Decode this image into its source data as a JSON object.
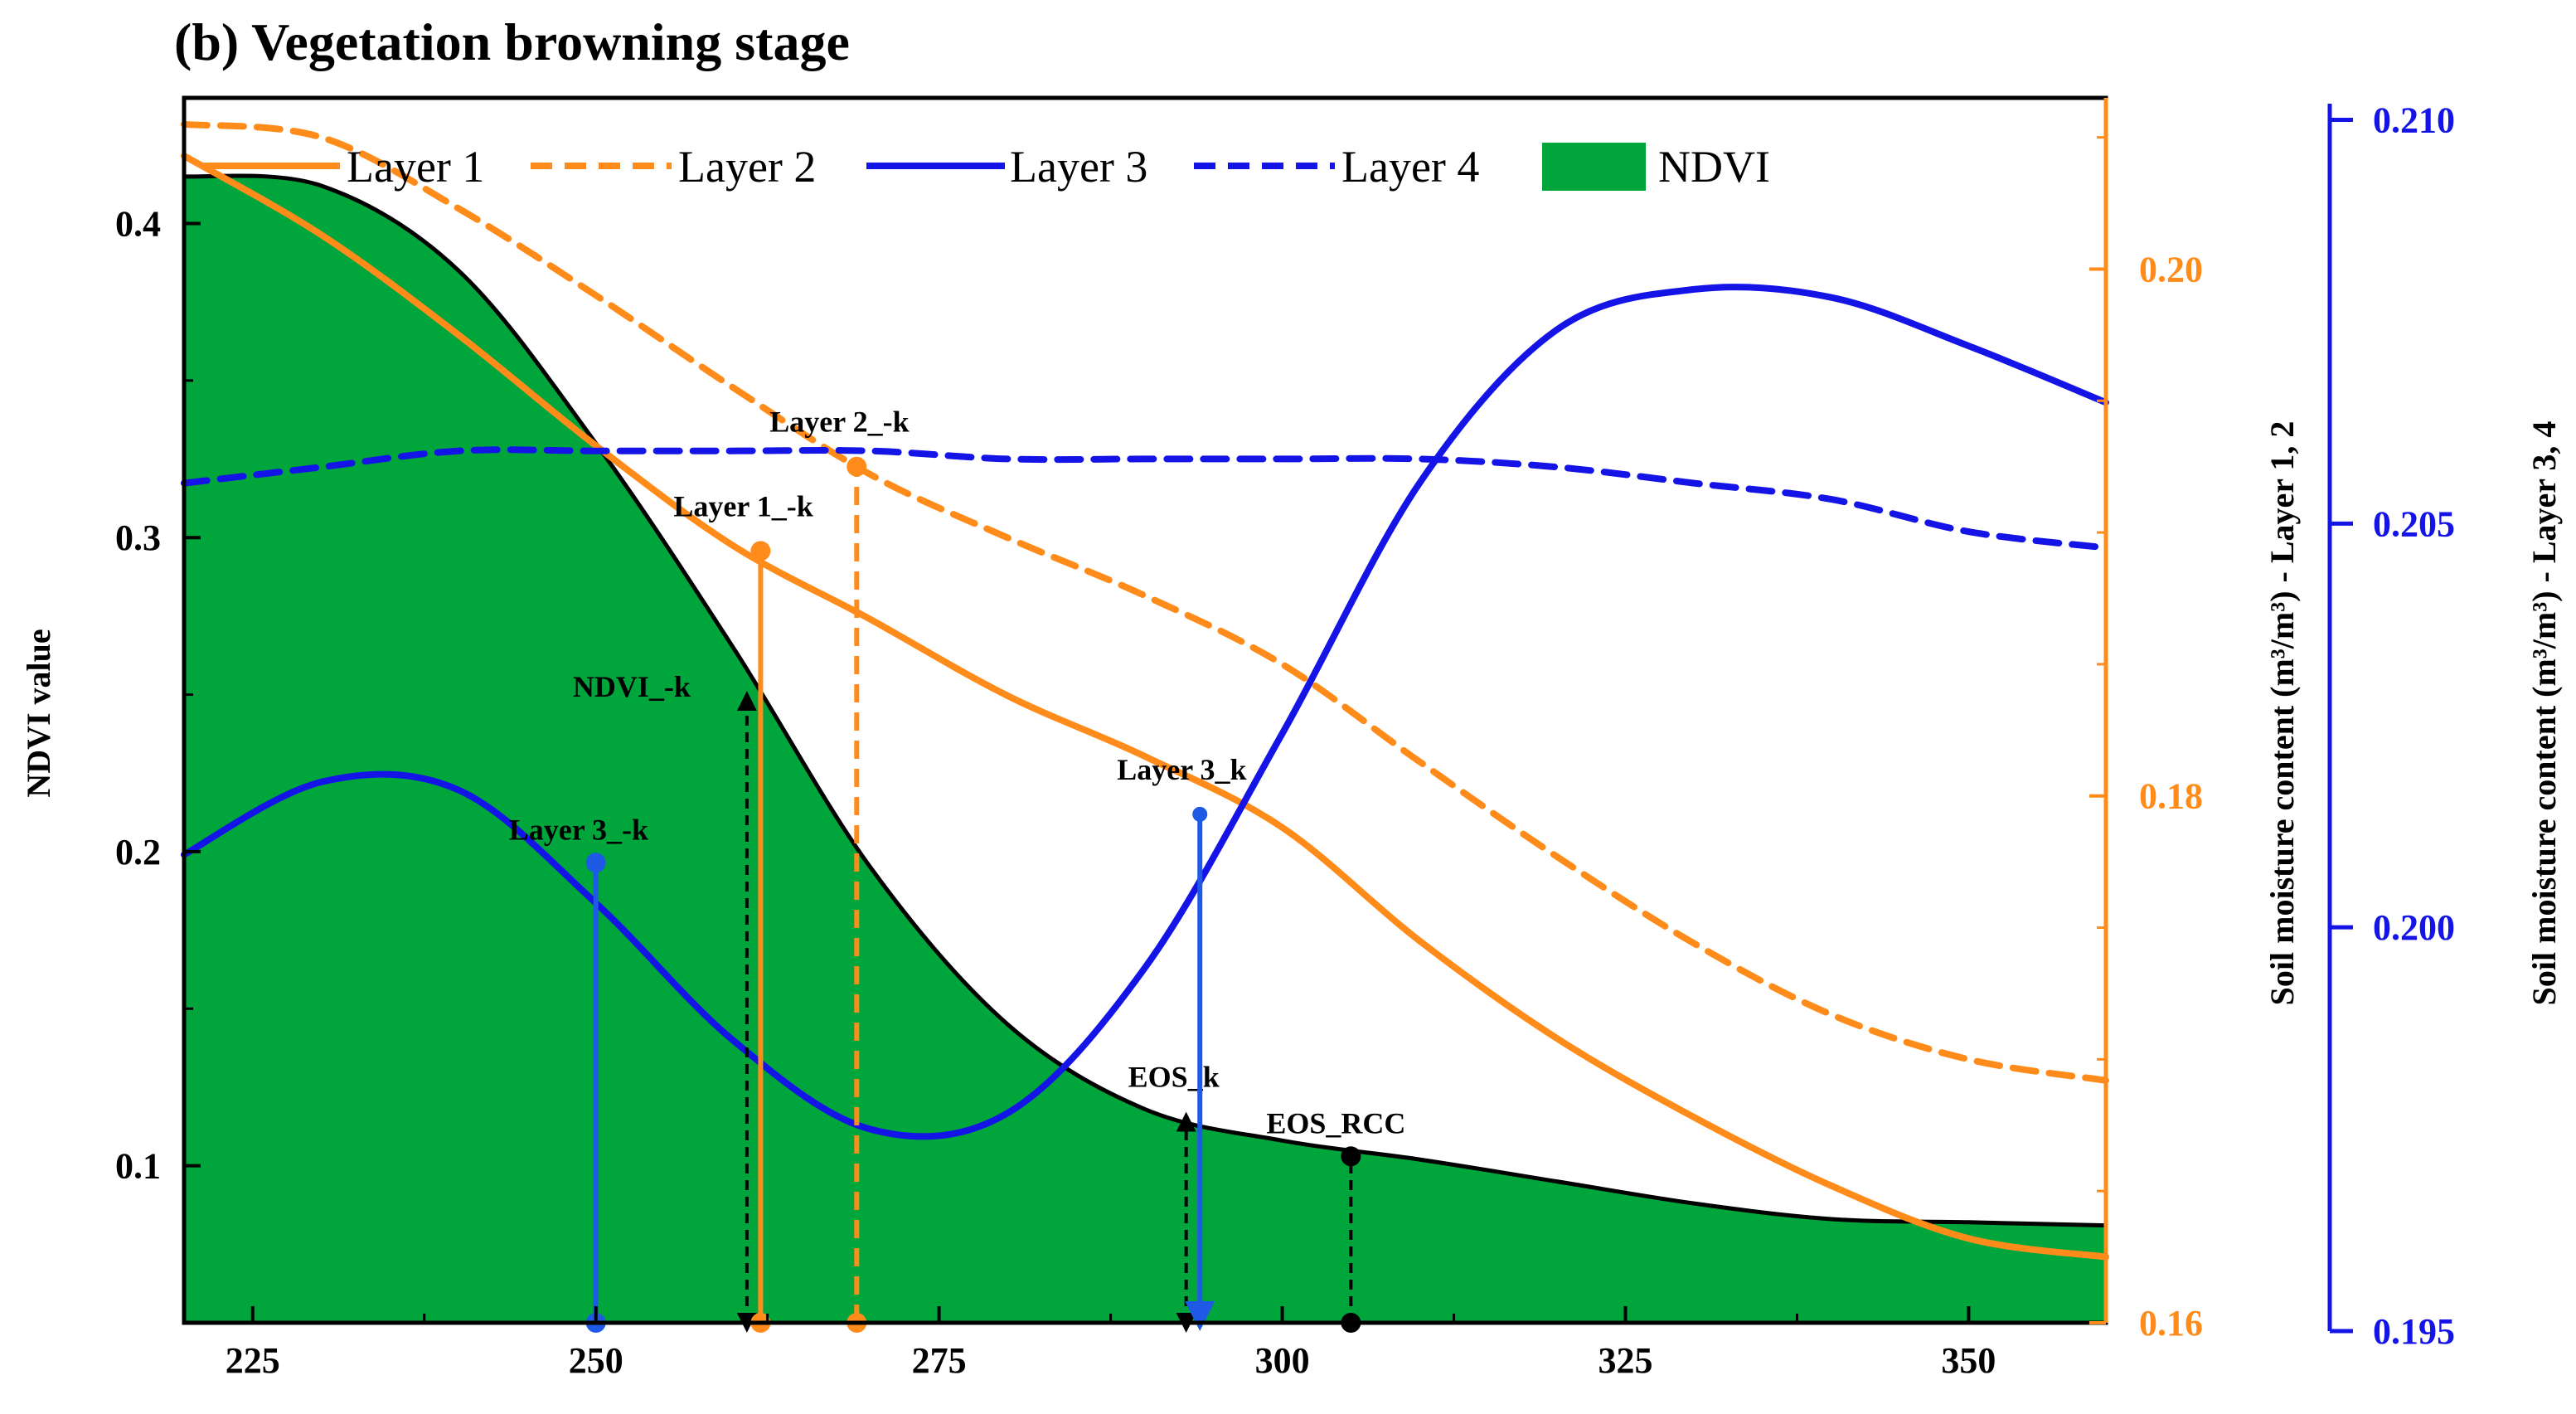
{
  "chart_data": {
    "type": "line",
    "title": "(b) Vegetation browning stage",
    "xlabel": "",
    "xlim": [
      220,
      360
    ],
    "xticks": [
      "225",
      "250",
      "275",
      "300",
      "325",
      "350"
    ],
    "left_axis": {
      "label": "NDVI value",
      "ylim": [
        0.05,
        0.44
      ],
      "ticks": [
        "0.1",
        "0.2",
        "0.3",
        "0.4"
      ],
      "color": "#000000"
    },
    "right_axis_1": {
      "label": "Soil moisture content (m³/m³) - Layer 1, 2",
      "ylim": [
        0.16,
        0.2065
      ],
      "ticks": [
        "0.16",
        "0.18",
        "0.20"
      ],
      "color": "#FF8C1A"
    },
    "right_axis_2": {
      "label": "Soil moisture content (m³/m³) - Layer 3, 4",
      "ylim": [
        0.195,
        0.2102
      ],
      "ticks": [
        "0.195",
        "0.200",
        "0.205",
        "0.210"
      ],
      "color": "#1414E6"
    },
    "legend": [
      {
        "name": "Layer 1",
        "style": "solid",
        "color": "#FF8C1A"
      },
      {
        "name": "Layer 2",
        "style": "dashed",
        "color": "#FF8C1A"
      },
      {
        "name": "Layer 3",
        "style": "solid",
        "color": "#1414E6"
      },
      {
        "name": "Layer 4",
        "style": "dashed",
        "color": "#1414E6"
      },
      {
        "name": "NDVI",
        "style": "area",
        "color": "#00A63C"
      }
    ],
    "x": [
      220,
      230,
      240,
      250,
      260,
      270,
      280,
      290,
      300,
      310,
      320,
      330,
      340,
      350,
      360
    ],
    "series": [
      {
        "name": "NDVI",
        "axis": "left",
        "values": [
          0.415,
          0.412,
          0.385,
          0.33,
          0.265,
          0.195,
          0.145,
          0.118,
          0.108,
          0.102,
          0.095,
          0.088,
          0.083,
          0.082,
          0.081
        ]
      },
      {
        "name": "Layer 1",
        "axis": "right_1",
        "values": [
          0.2043,
          0.2013,
          0.1975,
          0.1933,
          0.1895,
          0.1867,
          0.1838,
          0.1815,
          0.1788,
          0.1745,
          0.1708,
          0.1678,
          0.1652,
          0.1632,
          0.1625
        ]
      },
      {
        "name": "Layer 2",
        "axis": "right_1",
        "values": [
          0.2055,
          0.205,
          0.2023,
          0.199,
          0.1955,
          0.1922,
          0.1898,
          0.1876,
          0.185,
          0.1813,
          0.1777,
          0.1744,
          0.1717,
          0.17,
          0.1692
        ]
      },
      {
        "name": "Layer 3",
        "axis": "right_2",
        "values": [
          0.2009,
          0.2018,
          0.2017,
          0.2003,
          0.1986,
          0.1975,
          0.1977,
          0.1995,
          0.2024,
          0.2055,
          0.2074,
          0.2079,
          0.2078,
          0.2072,
          0.2065
        ]
      },
      {
        "name": "Layer 4",
        "axis": "right_2",
        "values": [
          0.2055,
          0.2057,
          0.2059,
          0.2059,
          0.2059,
          0.2059,
          0.2058,
          0.2058,
          0.2058,
          0.2058,
          0.2057,
          0.2055,
          0.2053,
          0.2049,
          0.2047
        ]
      }
    ],
    "markers": [
      {
        "label": "Layer 3_-k",
        "x": 250,
        "value": 0.2008,
        "axis": "right_2",
        "color": "#1E5AE6",
        "style": "solid",
        "arrow": false
      },
      {
        "label": "NDVI_-k",
        "x": 261,
        "value": 0.248,
        "axis": "left",
        "color": "#000000",
        "style": "dashed",
        "arrow": true
      },
      {
        "label": "Layer 1_-k",
        "x": 262,
        "value": 0.1893,
        "axis": "right_1",
        "color": "#FF8C1A",
        "style": "solid",
        "arrow": false
      },
      {
        "label": "Layer 2_-k",
        "x": 269,
        "value": 0.1925,
        "axis": "right_1",
        "color": "#FF8C1A",
        "style": "dashed",
        "arrow": false
      },
      {
        "label": "EOS_k",
        "x": 293,
        "value": 0.114,
        "axis": "left",
        "color": "#000000",
        "style": "dashed",
        "arrow": true
      },
      {
        "label": "Layer 3_k",
        "x": 294,
        "value": 0.2014,
        "axis": "right_2",
        "color": "#1E5AE6",
        "style": "solid",
        "arrow": true
      },
      {
        "label": "EOS_RCC",
        "x": 305,
        "value": 0.103,
        "axis": "left",
        "color": "#000000",
        "style": "dashed",
        "arrow": false
      }
    ]
  }
}
